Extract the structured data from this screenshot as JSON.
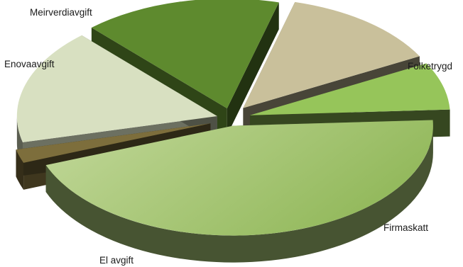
{
  "chart_data": {
    "type": "pie",
    "style": "3d-exploded",
    "title": "",
    "legend": "none",
    "slices": [
      {
        "label": "Enovaavgift",
        "value": 2,
        "color": "#7d6e3c"
      },
      {
        "label": "Meirverdiavgift",
        "value": 17,
        "color": "#d8e0c1"
      },
      {
        "label": "",
        "value": 16,
        "color": "#5e8a2e"
      },
      {
        "label": "Folketrygd",
        "value": 13,
        "color": "#c9c09b"
      },
      {
        "label": "Firmaskatt",
        "value": 7,
        "color": "#96c55a"
      },
      {
        "label": "El avgift",
        "value": 45,
        "color": "#a9c878"
      }
    ]
  }
}
